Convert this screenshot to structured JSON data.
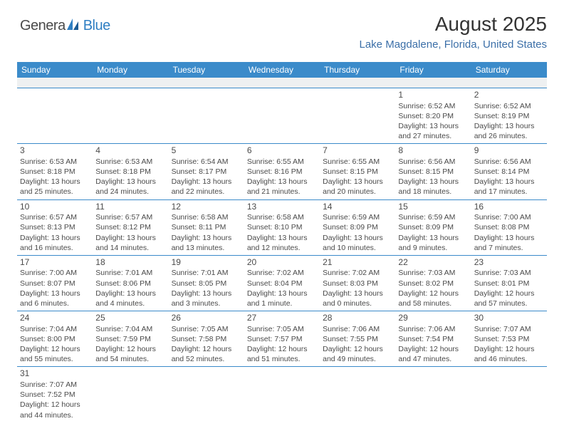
{
  "logo": {
    "general": "Genera",
    "blue": "Blue"
  },
  "title": "August 2025",
  "subtitle": "Lake Magdalene, Florida, United States",
  "header_bg": "#3b8bca",
  "header_fg": "#ffffff",
  "line_color": "#3b8bca",
  "text_color": "#4a4a4a",
  "subtitle_color": "#3b6fa8",
  "day_headers": [
    "Sunday",
    "Monday",
    "Tuesday",
    "Wednesday",
    "Thursday",
    "Friday",
    "Saturday"
  ],
  "weeks": [
    [
      null,
      null,
      null,
      null,
      null,
      {
        "n": "1",
        "sunrise": "6:52 AM",
        "sunset": "8:20 PM",
        "daylight": "13 hours and 27 minutes."
      },
      {
        "n": "2",
        "sunrise": "6:52 AM",
        "sunset": "8:19 PM",
        "daylight": "13 hours and 26 minutes."
      }
    ],
    [
      {
        "n": "3",
        "sunrise": "6:53 AM",
        "sunset": "8:18 PM",
        "daylight": "13 hours and 25 minutes."
      },
      {
        "n": "4",
        "sunrise": "6:53 AM",
        "sunset": "8:18 PM",
        "daylight": "13 hours and 24 minutes."
      },
      {
        "n": "5",
        "sunrise": "6:54 AM",
        "sunset": "8:17 PM",
        "daylight": "13 hours and 22 minutes."
      },
      {
        "n": "6",
        "sunrise": "6:55 AM",
        "sunset": "8:16 PM",
        "daylight": "13 hours and 21 minutes."
      },
      {
        "n": "7",
        "sunrise": "6:55 AM",
        "sunset": "8:15 PM",
        "daylight": "13 hours and 20 minutes."
      },
      {
        "n": "8",
        "sunrise": "6:56 AM",
        "sunset": "8:15 PM",
        "daylight": "13 hours and 18 minutes."
      },
      {
        "n": "9",
        "sunrise": "6:56 AM",
        "sunset": "8:14 PM",
        "daylight": "13 hours and 17 minutes."
      }
    ],
    [
      {
        "n": "10",
        "sunrise": "6:57 AM",
        "sunset": "8:13 PM",
        "daylight": "13 hours and 16 minutes."
      },
      {
        "n": "11",
        "sunrise": "6:57 AM",
        "sunset": "8:12 PM",
        "daylight": "13 hours and 14 minutes."
      },
      {
        "n": "12",
        "sunrise": "6:58 AM",
        "sunset": "8:11 PM",
        "daylight": "13 hours and 13 minutes."
      },
      {
        "n": "13",
        "sunrise": "6:58 AM",
        "sunset": "8:10 PM",
        "daylight": "13 hours and 12 minutes."
      },
      {
        "n": "14",
        "sunrise": "6:59 AM",
        "sunset": "8:09 PM",
        "daylight": "13 hours and 10 minutes."
      },
      {
        "n": "15",
        "sunrise": "6:59 AM",
        "sunset": "8:09 PM",
        "daylight": "13 hours and 9 minutes."
      },
      {
        "n": "16",
        "sunrise": "7:00 AM",
        "sunset": "8:08 PM",
        "daylight": "13 hours and 7 minutes."
      }
    ],
    [
      {
        "n": "17",
        "sunrise": "7:00 AM",
        "sunset": "8:07 PM",
        "daylight": "13 hours and 6 minutes."
      },
      {
        "n": "18",
        "sunrise": "7:01 AM",
        "sunset": "8:06 PM",
        "daylight": "13 hours and 4 minutes."
      },
      {
        "n": "19",
        "sunrise": "7:01 AM",
        "sunset": "8:05 PM",
        "daylight": "13 hours and 3 minutes."
      },
      {
        "n": "20",
        "sunrise": "7:02 AM",
        "sunset": "8:04 PM",
        "daylight": "13 hours and 1 minute."
      },
      {
        "n": "21",
        "sunrise": "7:02 AM",
        "sunset": "8:03 PM",
        "daylight": "13 hours and 0 minutes."
      },
      {
        "n": "22",
        "sunrise": "7:03 AM",
        "sunset": "8:02 PM",
        "daylight": "12 hours and 58 minutes."
      },
      {
        "n": "23",
        "sunrise": "7:03 AM",
        "sunset": "8:01 PM",
        "daylight": "12 hours and 57 minutes."
      }
    ],
    [
      {
        "n": "24",
        "sunrise": "7:04 AM",
        "sunset": "8:00 PM",
        "daylight": "12 hours and 55 minutes."
      },
      {
        "n": "25",
        "sunrise": "7:04 AM",
        "sunset": "7:59 PM",
        "daylight": "12 hours and 54 minutes."
      },
      {
        "n": "26",
        "sunrise": "7:05 AM",
        "sunset": "7:58 PM",
        "daylight": "12 hours and 52 minutes."
      },
      {
        "n": "27",
        "sunrise": "7:05 AM",
        "sunset": "7:57 PM",
        "daylight": "12 hours and 51 minutes."
      },
      {
        "n": "28",
        "sunrise": "7:06 AM",
        "sunset": "7:55 PM",
        "daylight": "12 hours and 49 minutes."
      },
      {
        "n": "29",
        "sunrise": "7:06 AM",
        "sunset": "7:54 PM",
        "daylight": "12 hours and 47 minutes."
      },
      {
        "n": "30",
        "sunrise": "7:07 AM",
        "sunset": "7:53 PM",
        "daylight": "12 hours and 46 minutes."
      }
    ],
    [
      {
        "n": "31",
        "sunrise": "7:07 AM",
        "sunset": "7:52 PM",
        "daylight": "12 hours and 44 minutes."
      },
      null,
      null,
      null,
      null,
      null,
      null
    ]
  ],
  "labels": {
    "sunrise": "Sunrise:",
    "sunset": "Sunset:",
    "daylight": "Daylight:"
  }
}
